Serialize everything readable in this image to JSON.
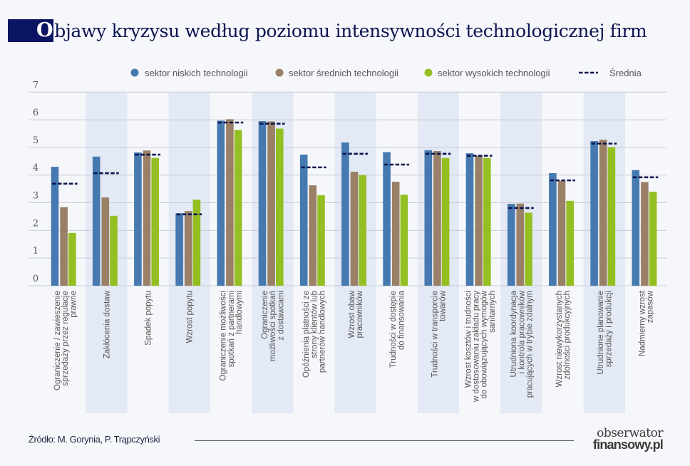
{
  "title": {
    "first_letter": "O",
    "rest": "bjawy kryzysu według poziomu intensywności technologicznej firm"
  },
  "colors": {
    "title_box": "#0b1460",
    "band": "#e3eaf5",
    "grid": "#c9cdd5"
  },
  "chart_data": {
    "type": "bar",
    "title": "Objawy kryzysu według poziomu intensywności technologicznej firm",
    "ylim": [
      0,
      7
    ],
    "yticks": [
      "0",
      "1",
      "2",
      "3",
      "4",
      "5",
      "6",
      "7"
    ],
    "grid": true,
    "legend_position": "top-right",
    "categories": [
      [
        "Ograniczenie / zawieszenie",
        "sprzedaży przez regulacje",
        "prawne"
      ],
      [
        "Zakłócenia dostaw"
      ],
      [
        "Spadek popytu"
      ],
      [
        "Wzrost popytu"
      ],
      [
        "Ograniczenie możliwości",
        "spotkań z partnerami",
        "handlowymi"
      ],
      [
        "Ograniczenie",
        "możliwości spotkań",
        "z dostawcami"
      ],
      [
        "Opóźnienia płatności ze",
        "strony klientów lub",
        "partnerów handlowych"
      ],
      [
        "Wzrost obaw",
        "pracowników"
      ],
      [
        "Trudności w dostępie",
        "do finansowania"
      ],
      [
        "Trudności w transporcie",
        "towarów"
      ],
      [
        "Wzrost kosztów i trudności",
        "w dostosowaniu zakładu pracy",
        "do obowiązujących wymogów",
        "sanitarnych"
      ],
      [
        "Utrudniona koordynacja",
        "i kontrola pracowników",
        "pracujących w trybie zdalnym"
      ],
      [
        "Wzrost niewykorzystanych",
        "zdolności produkcyjnych"
      ],
      [
        "Utrudnione planowanie",
        "sprzedaży i produkcji"
      ],
      [
        "Nadmierny wzrost",
        "zapasów"
      ]
    ],
    "series": [
      {
        "name": "sektor niskich technologii",
        "color": "#4579b0",
        "values": [
          4.3,
          4.67,
          4.82,
          2.62,
          5.97,
          5.95,
          4.74,
          5.18,
          4.83,
          4.9,
          4.79,
          2.96,
          4.07,
          5.23,
          4.18
        ]
      },
      {
        "name": "sektor średnich technologii",
        "color": "#9a8067",
        "values": [
          2.84,
          3.19,
          4.89,
          2.7,
          6.02,
          5.94,
          3.63,
          4.12,
          3.76,
          4.87,
          4.7,
          2.97,
          3.79,
          5.28,
          3.75
        ]
      },
      {
        "name": "sektor wysokich technologii",
        "color": "#94bf22",
        "values": [
          1.91,
          2.53,
          4.62,
          3.11,
          5.63,
          5.68,
          3.27,
          4.0,
          3.29,
          4.62,
          4.62,
          2.64,
          3.07,
          5.01,
          3.4
        ]
      }
    ],
    "average": {
      "name": "Średnia",
      "color": "#0b1450",
      "style": "dashed",
      "values": [
        3.69,
        4.07,
        4.74,
        2.58,
        5.9,
        5.86,
        4.28,
        4.77,
        4.38,
        4.77,
        4.7,
        2.81,
        3.81,
        5.14,
        3.92
      ]
    }
  },
  "footer": {
    "source": "Źródło: M. Gorynia, P. Trąpczyński",
    "logo_line1": "obserwator",
    "logo_line2": "finansowy.pl"
  }
}
